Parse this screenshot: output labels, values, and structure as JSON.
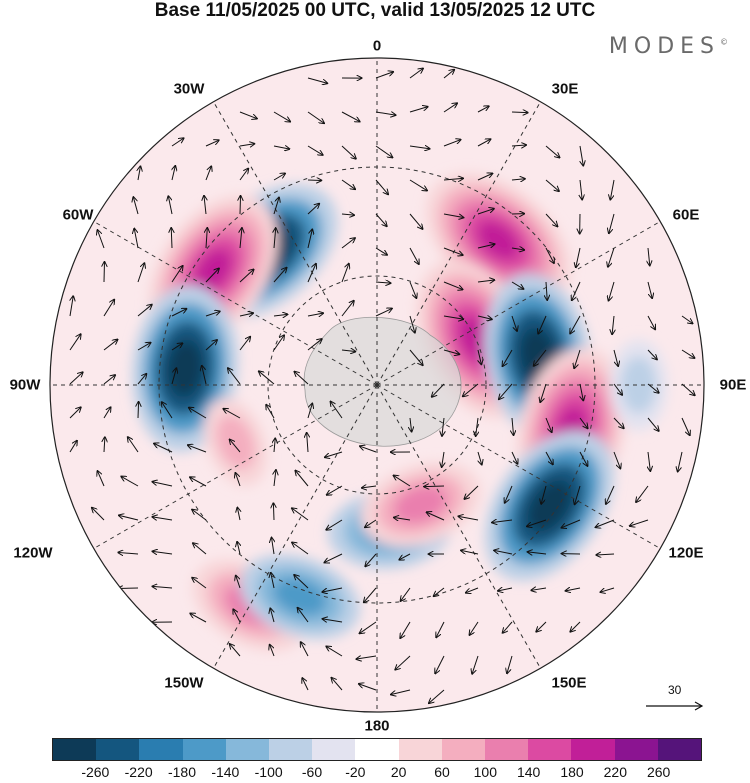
{
  "title": "Base 11/05/2025 00 UTC, valid 13/05/2025 12 UTC",
  "brand": "MODES",
  "brand_mark": "©",
  "longitude_labels": {
    "top": "0",
    "top_left": "30W",
    "top_right": "30E",
    "left_upper": "60W",
    "right_upper": "60E",
    "left": "90W",
    "right": "90E",
    "left_lower": "120W",
    "right_lower": "120E",
    "bottom_left": "150W",
    "bottom_right": "150E",
    "bottom": "180"
  },
  "reference_vector": "30",
  "colorbar": {
    "ticks": [
      "-260",
      "-220",
      "-180",
      "-140",
      "-100",
      "-60",
      "-20",
      "20",
      "60",
      "100",
      "140",
      "180",
      "220",
      "260"
    ],
    "colors": [
      "#0d3a57",
      "#14567f",
      "#2a7db0",
      "#4d9ac8",
      "#86b8da",
      "#bcd0e6",
      "#e3e3f0",
      "#ffffff",
      "#f8d5d8",
      "#f4aebf",
      "#ea7fae",
      "#dc4aa2",
      "#c11f98",
      "#8b1491",
      "#55147a"
    ]
  },
  "anomaly_features": [
    {
      "sign": "negative",
      "level": "strong",
      "lon_deg": -40,
      "colat_deg": 48
    },
    {
      "sign": "positive",
      "level": "strong",
      "lon_deg": -55,
      "colat_deg": 55
    },
    {
      "sign": "positive",
      "level": "strong",
      "lon_deg": 40,
      "colat_deg": 52
    },
    {
      "sign": "positive",
      "level": "strong",
      "lon_deg": 65,
      "colat_deg": 30
    },
    {
      "sign": "negative",
      "level": "strong",
      "lon_deg": 80,
      "colat_deg": 45
    },
    {
      "sign": "negative",
      "level": "strong",
      "lon_deg": -85,
      "colat_deg": 53
    },
    {
      "sign": "positive",
      "level": "strong",
      "lon_deg": 103,
      "colat_deg": 55
    },
    {
      "sign": "negative",
      "level": "strong",
      "lon_deg": 125,
      "colat_deg": 58
    },
    {
      "sign": "negative",
      "level": "medium",
      "lon_deg": 175,
      "colat_deg": 40
    },
    {
      "sign": "positive",
      "level": "medium",
      "lon_deg": 160,
      "colat_deg": 35
    },
    {
      "sign": "positive",
      "level": "weak",
      "lon_deg": -112,
      "colat_deg": 42
    },
    {
      "sign": "positive",
      "level": "medium",
      "lon_deg": -150,
      "colat_deg": 70
    },
    {
      "sign": "negative",
      "level": "medium",
      "lon_deg": -160,
      "colat_deg": 62
    },
    {
      "sign": "negative",
      "level": "weak",
      "lon_deg": 90,
      "colat_deg": 72
    }
  ]
}
